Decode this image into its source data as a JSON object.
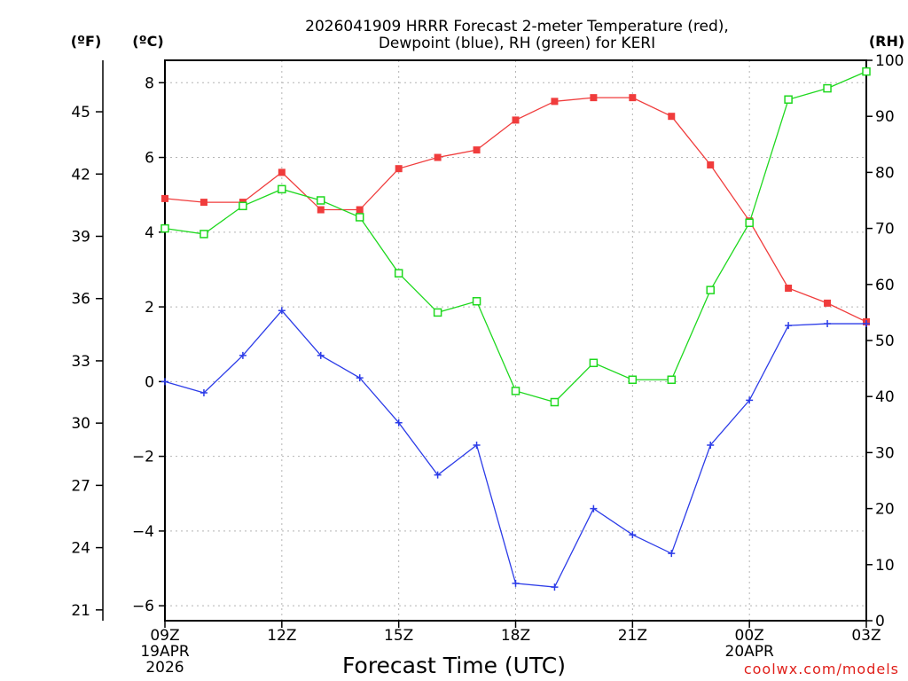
{
  "chart_data": {
    "type": "line",
    "title_line1": "2026041909 HRRR Forecast 2-meter Temperature (red),",
    "title_line2": "Dewpoint (blue), RH (green) for KERI",
    "xlabel": "Forecast Time (UTC)",
    "credit": "coolwx.com/models",
    "unit_f": "(ºF)",
    "unit_c": "(ºC)",
    "unit_rh": "(RH)",
    "hours": [
      0,
      1,
      2,
      3,
      4,
      5,
      6,
      7,
      8,
      9,
      10,
      11,
      12,
      13,
      14,
      15,
      16,
      17,
      18
    ],
    "x_ticks": [
      {
        "hour": 0,
        "lines": [
          "09Z",
          "19APR",
          "2026"
        ]
      },
      {
        "hour": 3,
        "lines": [
          "12Z"
        ]
      },
      {
        "hour": 6,
        "lines": [
          "15Z"
        ]
      },
      {
        "hour": 9,
        "lines": [
          "18Z"
        ]
      },
      {
        "hour": 12,
        "lines": [
          "21Z"
        ]
      },
      {
        "hour": 15,
        "lines": [
          "00Z",
          "20APR"
        ]
      },
      {
        "hour": 18,
        "lines": [
          "03Z"
        ]
      }
    ],
    "c_range": [
      -6.4,
      8.6
    ],
    "c_ticks": [
      8,
      6,
      4,
      2,
      0,
      -2,
      -4,
      -6
    ],
    "c_tick_labels": [
      "8",
      "6",
      "4",
      "2",
      "0",
      "−2",
      "−4",
      "−6"
    ],
    "f_ticks": [
      45,
      42,
      39,
      36,
      33,
      30,
      27,
      24,
      21
    ],
    "f_tick_labels": [
      "45",
      "42",
      "39",
      "36",
      "33",
      "30",
      "27",
      "24",
      "21"
    ],
    "rh_range": [
      0,
      100
    ],
    "rh_ticks": [
      100,
      90,
      80,
      70,
      60,
      50,
      40,
      30,
      20,
      10,
      0
    ],
    "rh_tick_labels": [
      "100",
      "90",
      "80",
      "70",
      "60",
      "50",
      "40",
      "30",
      "20",
      "10",
      "0"
    ],
    "series": [
      {
        "name": "Temperature",
        "color": "#f03c3c",
        "marker": "filled-square",
        "axis": "c",
        "values": [
          4.9,
          4.8,
          4.8,
          5.6,
          4.6,
          4.6,
          5.7,
          6.0,
          6.2,
          7.0,
          7.5,
          7.6,
          7.6,
          7.1,
          5.8,
          4.3,
          2.5,
          2.1,
          1.6
        ]
      },
      {
        "name": "Dewpoint",
        "color": "#2c3ce8",
        "marker": "plus",
        "axis": "c",
        "values": [
          0.0,
          -0.3,
          0.7,
          1.9,
          0.7,
          0.1,
          -1.1,
          -2.5,
          -1.7,
          -5.4,
          -5.5,
          -3.4,
          -4.1,
          -4.6,
          -1.7,
          -0.5,
          1.5,
          1.55,
          1.55
        ]
      },
      {
        "name": "RH",
        "color": "#1ed81e",
        "marker": "open-square",
        "axis": "rh",
        "values": [
          70,
          69,
          74,
          77,
          75,
          72,
          62,
          55,
          57,
          41,
          39,
          46,
          43,
          43,
          59,
          71,
          93,
          95,
          98
        ]
      }
    ]
  }
}
